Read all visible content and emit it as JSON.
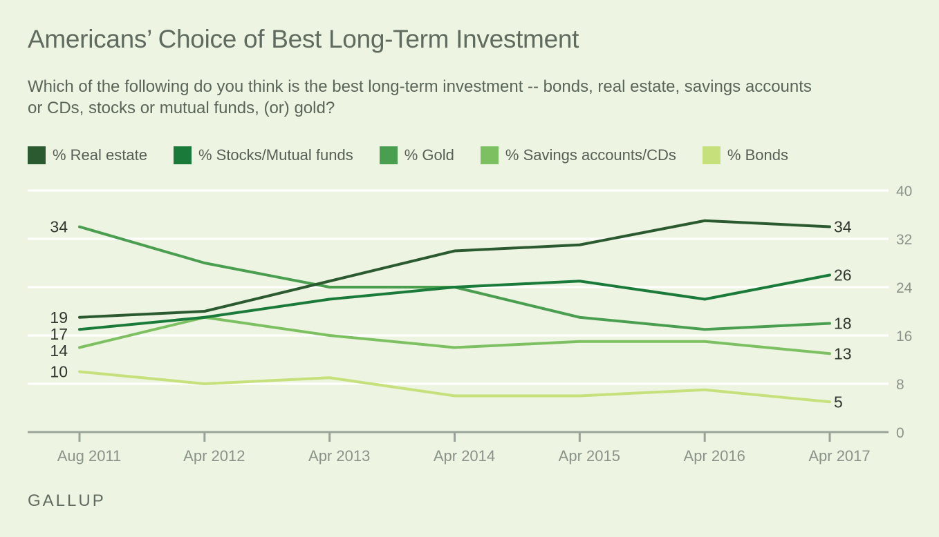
{
  "title": "Americans’ Choice of Best Long-Term Investment",
  "subtitle": "Which of the following do you think is the best long-term investment -- bonds, real estate, savings accounts or CDs, stocks or mutual funds, (or) gold?",
  "footer": "GALLUP",
  "chart_data": {
    "type": "line",
    "x": [
      "Aug 2011",
      "Apr 2012",
      "Apr 2013",
      "Apr 2014",
      "Apr 2015",
      "Apr 2016",
      "Apr 2017"
    ],
    "ylim": [
      0,
      40
    ],
    "yticks": [
      0,
      8,
      16,
      24,
      32,
      40
    ],
    "grid": true,
    "legend_position": "top",
    "series": [
      {
        "name": "% Real estate",
        "color": "#2b5a30",
        "values": [
          19,
          20,
          25,
          30,
          31,
          35,
          34
        ]
      },
      {
        "name": "% Stocks/Mutual funds",
        "color": "#1a7a3a",
        "values": [
          17,
          19,
          22,
          24,
          25,
          22,
          26
        ]
      },
      {
        "name": "% Gold",
        "color": "#4a9e50",
        "values": [
          34,
          28,
          24,
          24,
          19,
          17,
          18
        ]
      },
      {
        "name": "% Savings accounts/CDs",
        "color": "#7cc062",
        "values": [
          14,
          19,
          16,
          14,
          15,
          15,
          13
        ]
      },
      {
        "name": "% Bonds",
        "color": "#c6e07c",
        "values": [
          10,
          8,
          9,
          6,
          6,
          7,
          5
        ]
      }
    ]
  }
}
